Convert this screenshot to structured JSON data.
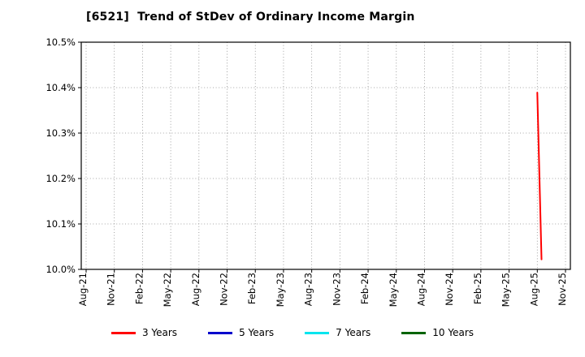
{
  "title": "[6521]  Trend of StDev of Ordinary Income Margin",
  "chart_data": {
    "type": "line",
    "title": "[6521]  Trend of StDev of Ordinary Income Margin",
    "xlabel": "",
    "ylabel": "",
    "ylim": [
      10.0,
      10.5
    ],
    "ytick_step": 0.1,
    "ytick_labels": [
      "10.0%",
      "10.1%",
      "10.2%",
      "10.3%",
      "10.4%",
      "10.5%"
    ],
    "x_labels": [
      "Aug-21",
      "Nov-21",
      "Feb-22",
      "May-22",
      "Aug-22",
      "Nov-22",
      "Feb-23",
      "May-23",
      "Aug-23",
      "Nov-23",
      "Feb-24",
      "May-24",
      "Aug-24",
      "Nov-24",
      "Feb-25",
      "May-25",
      "Aug-25",
      "Nov-25"
    ],
    "grid": true,
    "legend_position": "bottom",
    "series": [
      {
        "name": "3 Years",
        "color": "#ff0000",
        "points": [
          {
            "x": 16.0,
            "y": 10.389
          },
          {
            "x": 16.15,
            "y": 10.022
          }
        ]
      },
      {
        "name": "5 Years",
        "color": "#0000cc",
        "points": []
      },
      {
        "name": "7 Years",
        "color": "#00e5ee",
        "points": []
      },
      {
        "name": "10 Years",
        "color": "#006400",
        "points": []
      }
    ]
  }
}
